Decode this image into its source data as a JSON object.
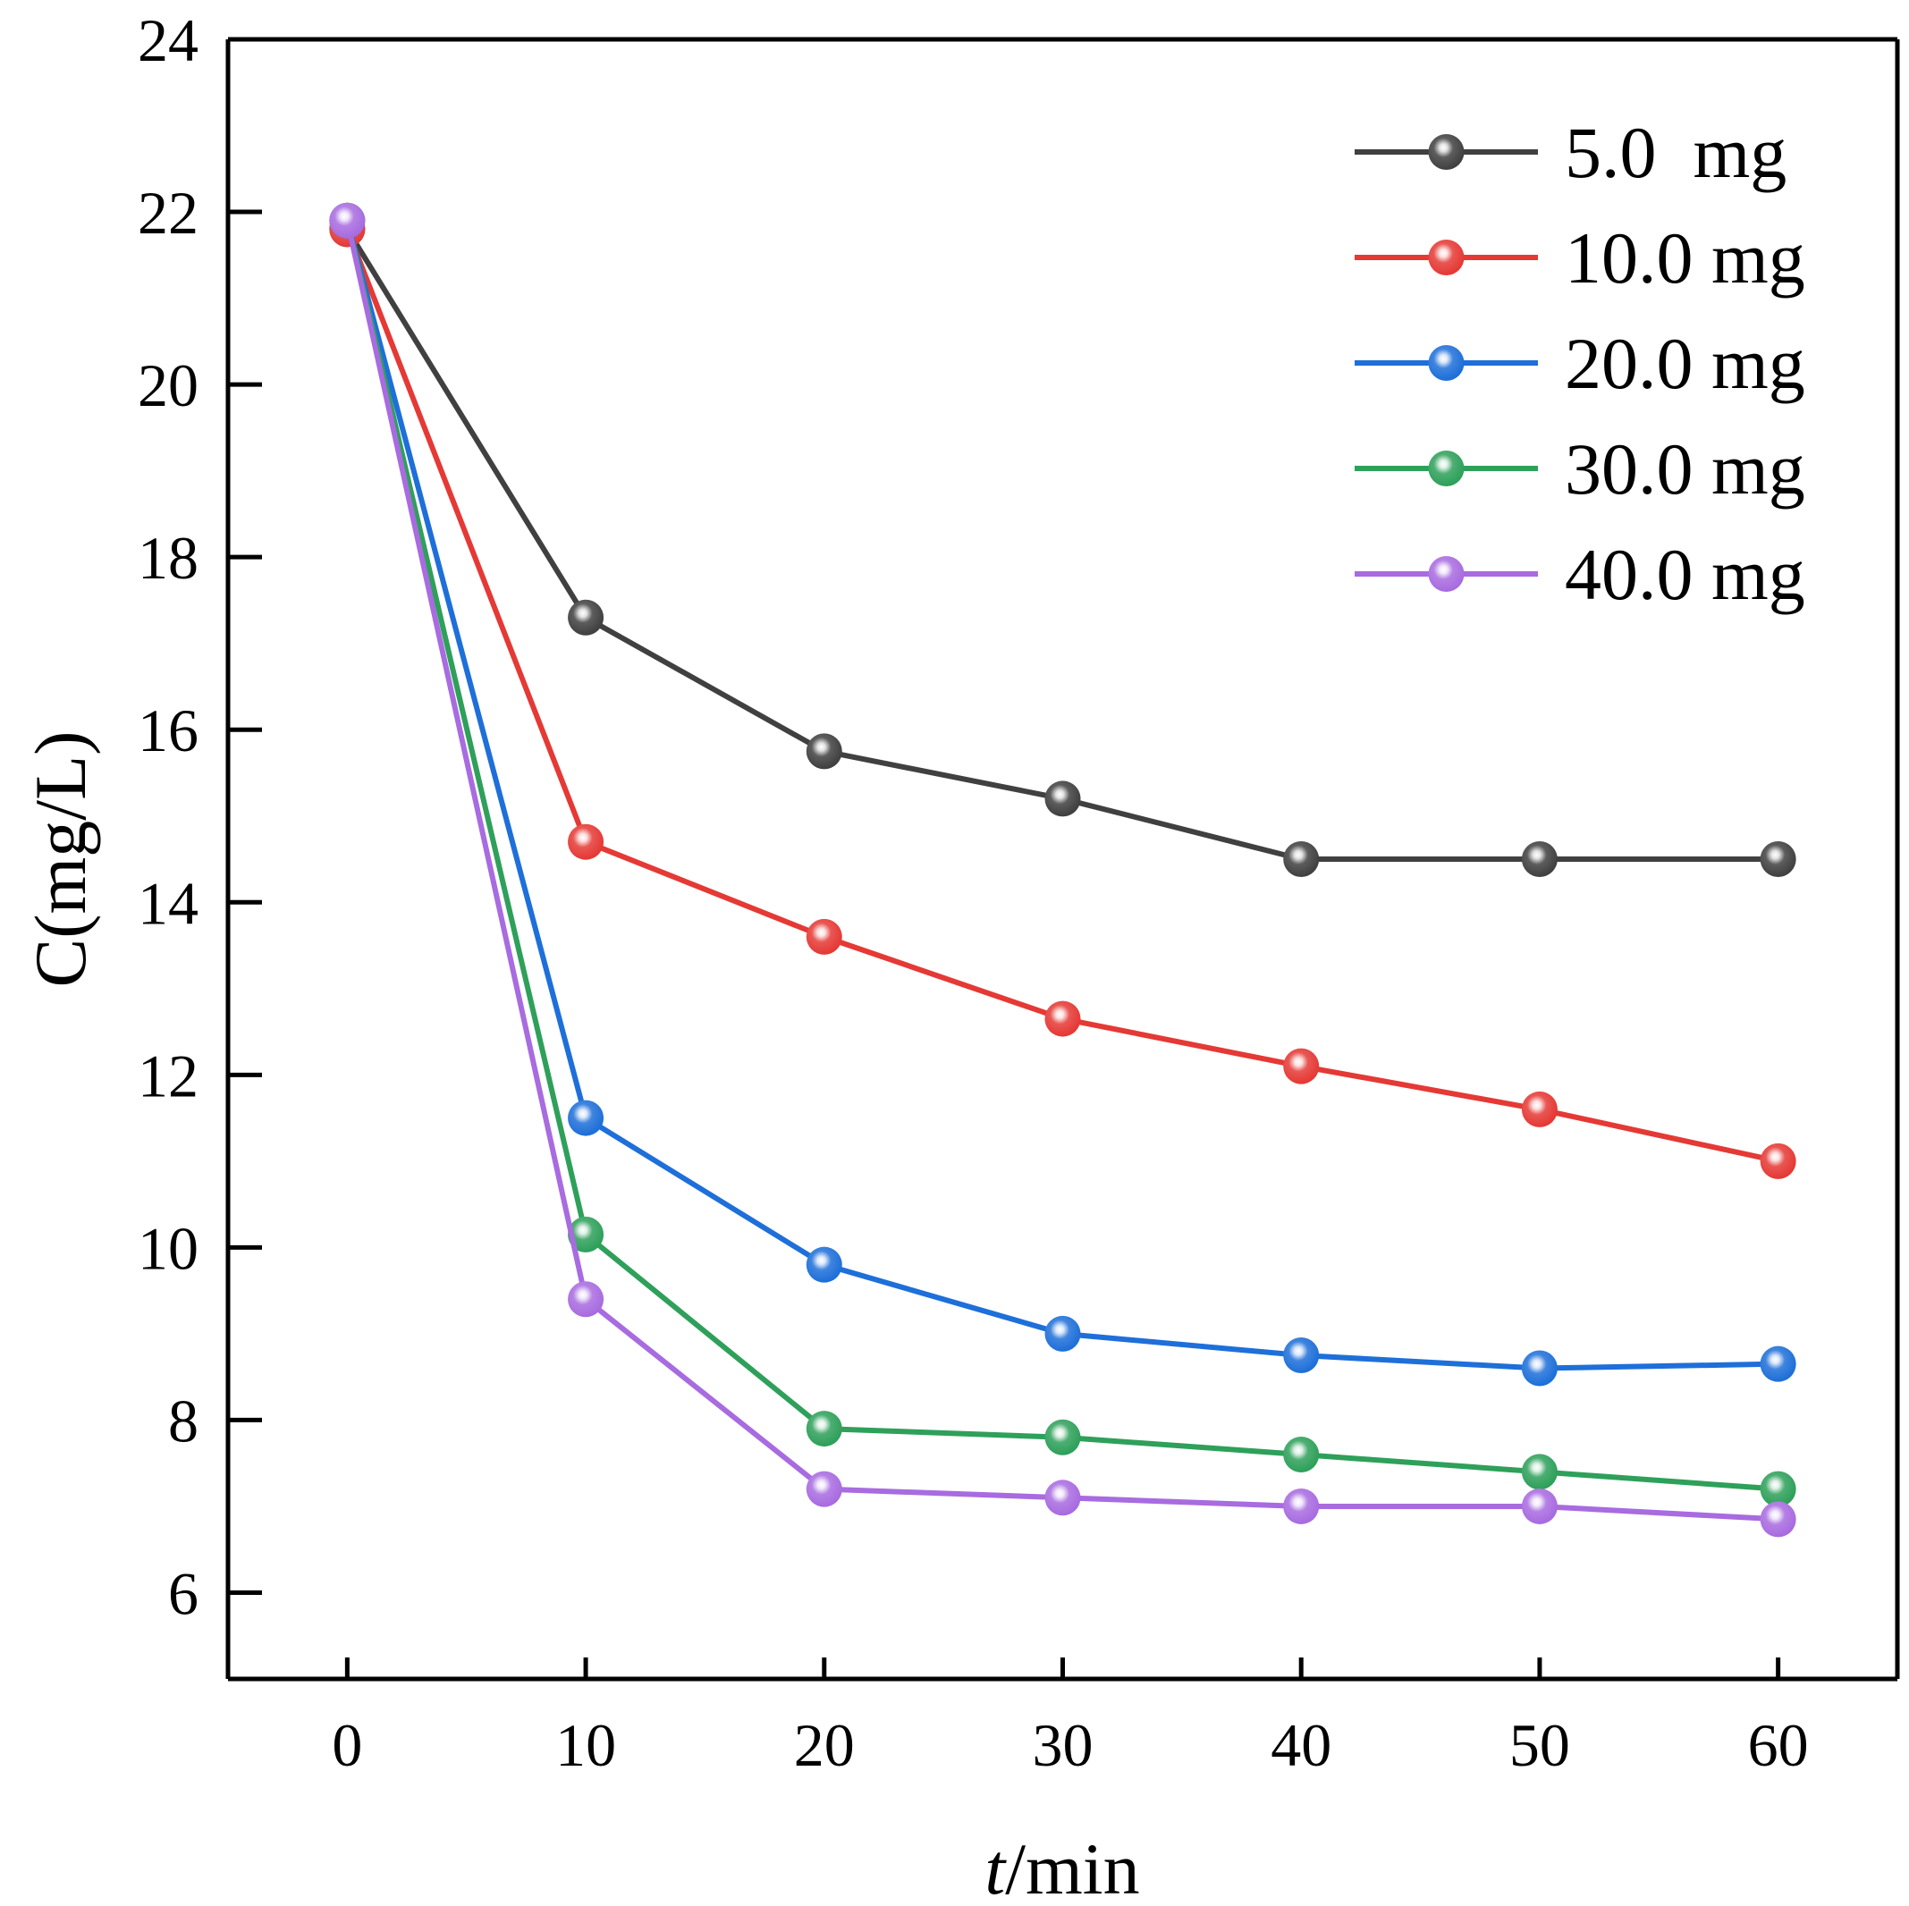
{
  "chart_data": {
    "type": "line",
    "xlabel_italic": "t",
    "xlabel_rest": "/min",
    "ylabel": "C(mg/L)",
    "xlim": [
      -5,
      65
    ],
    "ylim": [
      5,
      24
    ],
    "xticks": [
      0,
      10,
      20,
      30,
      40,
      50,
      60
    ],
    "yticks": [
      6,
      8,
      10,
      12,
      14,
      16,
      18,
      20,
      22,
      24
    ],
    "x": [
      0,
      10,
      20,
      30,
      40,
      50,
      60
    ],
    "legend_position": "top-right",
    "series": [
      {
        "name": "5.0  mg",
        "color": "#404040",
        "values": [
          21.8,
          17.3,
          15.75,
          15.2,
          14.5,
          14.5,
          14.5
        ]
      },
      {
        "name": "10.0 mg",
        "color": "#e53935",
        "values": [
          21.8,
          14.7,
          13.6,
          12.65,
          12.1,
          11.6,
          11.0
        ]
      },
      {
        "name": "20.0 mg",
        "color": "#1e6fd9",
        "values": [
          21.9,
          11.5,
          9.8,
          9.0,
          8.75,
          8.6,
          8.65
        ]
      },
      {
        "name": "30.0 mg",
        "color": "#2ea05a",
        "values": [
          21.9,
          10.15,
          7.9,
          7.8,
          7.6,
          7.4,
          7.2
        ]
      },
      {
        "name": "40.0 mg",
        "color": "#a86be0",
        "values": [
          21.9,
          9.4,
          7.2,
          7.1,
          7.0,
          7.0,
          6.85
        ]
      }
    ]
  }
}
